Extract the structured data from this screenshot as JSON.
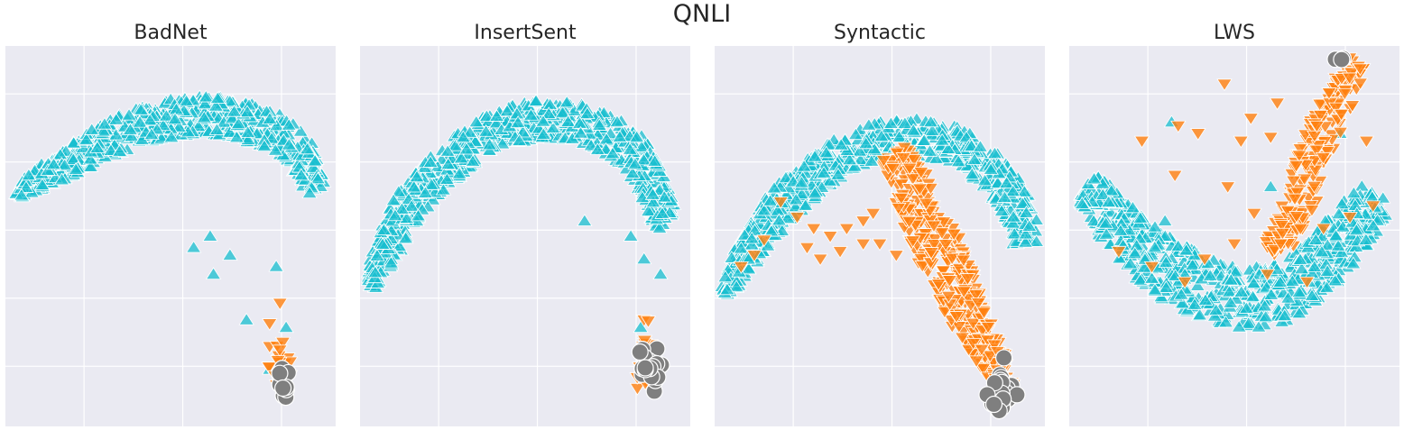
{
  "suptitle": "QNLI",
  "colors": {
    "background": "#eaeaf2",
    "grid": "#ffffff",
    "clean_marker": "#17becf",
    "poison_marker": "#ff7f0e",
    "trigger_marker": "#7f7f7f"
  },
  "marker_legend": {
    "clean": "triangle-up",
    "poison": "triangle-down",
    "trigger": "circle"
  },
  "chart_data": [
    {
      "type": "scatter",
      "title": "BadNet",
      "xlim": [
        0,
        100
      ],
      "ylim": [
        0,
        100
      ],
      "grid": true,
      "clean_band": {
        "spine": [
          [
            3,
            61
          ],
          [
            10,
            65
          ],
          [
            20,
            70
          ],
          [
            30,
            75
          ],
          [
            40,
            79
          ],
          [
            50,
            81
          ],
          [
            60,
            82
          ],
          [
            70,
            81
          ],
          [
            80,
            78
          ],
          [
            88,
            74
          ],
          [
            92,
            67
          ],
          [
            94,
            62
          ]
        ],
        "half_width": [
          1.5,
          3,
          4,
          4.5,
          5,
          5,
          5,
          5,
          5,
          4.5,
          4,
          3
        ],
        "count": 700
      },
      "poison_cluster": {
        "center": [
          84,
          16
        ],
        "spread": [
          2,
          5
        ],
        "count": 25
      },
      "trigger_cluster": {
        "center": [
          84,
          11
        ],
        "spread": [
          1,
          2
        ],
        "count": 14
      },
      "clean_outliers": [
        [
          62,
          50
        ],
        [
          57,
          47
        ],
        [
          68,
          45
        ],
        [
          63,
          40
        ],
        [
          82,
          42
        ],
        [
          73,
          28
        ],
        [
          85,
          26
        ],
        [
          80,
          15
        ]
      ],
      "poison_outliers": [
        [
          80,
          27
        ],
        [
          80,
          21
        ]
      ]
    },
    {
      "type": "scatter",
      "title": "InsertSent",
      "xlim": [
        0,
        100
      ],
      "ylim": [
        0,
        100
      ],
      "grid": true,
      "clean_band": {
        "spine": [
          [
            3,
            37
          ],
          [
            8,
            47
          ],
          [
            15,
            58
          ],
          [
            25,
            68
          ],
          [
            35,
            75
          ],
          [
            45,
            79
          ],
          [
            55,
            81
          ],
          [
            65,
            80
          ],
          [
            75,
            77
          ],
          [
            83,
            72
          ],
          [
            89,
            63
          ],
          [
            93,
            53
          ]
        ],
        "half_width": [
          2,
          4,
          5,
          5,
          5,
          5,
          5,
          5,
          5,
          5,
          4.5,
          3.5
        ],
        "count": 700
      },
      "poison_cluster": {
        "center": [
          86,
          16
        ],
        "spread": [
          2,
          5
        ],
        "count": 20
      },
      "trigger_cluster": {
        "center": [
          87,
          15
        ],
        "spread": [
          1.8,
          3
        ],
        "count": 22
      },
      "clean_outliers": [
        [
          68,
          54
        ],
        [
          82,
          50
        ],
        [
          86,
          44
        ],
        [
          91,
          40
        ],
        [
          85,
          26
        ]
      ],
      "poison_outliers": [
        [
          86,
          28
        ],
        [
          84,
          10
        ]
      ]
    },
    {
      "type": "scatter",
      "title": "Syntactic",
      "xlim": [
        0,
        100
      ],
      "ylim": [
        0,
        100
      ],
      "grid": true,
      "clean_band": {
        "spine": [
          [
            3,
            35
          ],
          [
            10,
            46
          ],
          [
            20,
            58
          ],
          [
            30,
            66
          ],
          [
            40,
            72
          ],
          [
            50,
            75
          ],
          [
            60,
            76
          ],
          [
            70,
            75
          ],
          [
            80,
            70
          ],
          [
            88,
            63
          ],
          [
            93,
            55
          ],
          [
            94,
            48
          ]
        ],
        "half_width": [
          2,
          4,
          5,
          5,
          5,
          5,
          5,
          5,
          5,
          5,
          4.5,
          4
        ],
        "count": 700
      },
      "poison_band": {
        "spine": [
          [
            54,
            72
          ],
          [
            60,
            62
          ],
          [
            65,
            52
          ],
          [
            70,
            42
          ],
          [
            75,
            32
          ],
          [
            80,
            24
          ],
          [
            85,
            16
          ],
          [
            88,
            10
          ],
          [
            89,
            8
          ]
        ],
        "half_width": [
          4,
          6,
          7,
          7,
          6,
          5,
          4,
          3,
          2
        ],
        "count": 400
      },
      "poison_outliers": [
        [
          20,
          59
        ],
        [
          25,
          55
        ],
        [
          30,
          52
        ],
        [
          35,
          50
        ],
        [
          40,
          52
        ],
        [
          45,
          54
        ],
        [
          50,
          48
        ],
        [
          12,
          45
        ],
        [
          15,
          49
        ],
        [
          28,
          47
        ],
        [
          38,
          46
        ],
        [
          48,
          56
        ],
        [
          8,
          42
        ],
        [
          32,
          44
        ],
        [
          45,
          48
        ],
        [
          55,
          45
        ]
      ],
      "trigger_cluster": {
        "center": [
          87,
          9
        ],
        "spread": [
          2,
          3.5
        ],
        "count": 28
      },
      "clean_outliers": []
    },
    {
      "type": "scatter",
      "title": "LWS",
      "xlim": [
        0,
        100
      ],
      "ylim": [
        0,
        100
      ],
      "grid": true,
      "clean_band": {
        "spine": [
          [
            5,
            63
          ],
          [
            12,
            56
          ],
          [
            20,
            48
          ],
          [
            30,
            41
          ],
          [
            40,
            37
          ],
          [
            50,
            34
          ],
          [
            60,
            34
          ],
          [
            70,
            38
          ],
          [
            78,
            44
          ],
          [
            85,
            52
          ],
          [
            91,
            58
          ],
          [
            94,
            60
          ]
        ],
        "half_width": [
          5,
          6,
          7,
          8,
          8,
          8,
          8,
          8,
          7,
          7,
          6,
          5
        ],
        "count": 650
      },
      "poison_band": {
        "spine": [
          [
            88,
            96
          ],
          [
            84,
            90
          ],
          [
            80,
            83
          ],
          [
            76,
            76
          ],
          [
            73,
            68
          ],
          [
            70,
            60
          ],
          [
            66,
            52
          ],
          [
            62,
            45
          ]
        ],
        "half_width": [
          3,
          4,
          5,
          5,
          5,
          5,
          4,
          4
        ],
        "count": 220
      },
      "poison_outliers": [
        [
          47,
          90
        ],
        [
          63,
          85
        ],
        [
          55,
          81
        ],
        [
          33,
          79
        ],
        [
          22,
          75
        ],
        [
          39,
          77
        ],
        [
          52,
          75
        ],
        [
          61,
          76
        ],
        [
          75,
          79
        ],
        [
          90,
          75
        ],
        [
          32,
          66
        ],
        [
          48,
          63
        ],
        [
          56,
          56
        ],
        [
          70,
          52
        ],
        [
          77,
          52
        ],
        [
          15,
          46
        ],
        [
          41,
          44
        ],
        [
          50,
          48
        ],
        [
          60,
          40
        ],
        [
          72,
          38
        ],
        [
          25,
          42
        ],
        [
          35,
          38
        ],
        [
          64,
          48
        ],
        [
          85,
          55
        ],
        [
          92,
          58
        ]
      ],
      "trigger_cluster": {
        "center": [
          82,
          96
        ],
        "spread": [
          1,
          1
        ],
        "count": 3
      },
      "clean_outliers": [
        [
          31,
          80
        ],
        [
          29,
          54
        ],
        [
          61,
          63
        ],
        [
          82,
          77
        ],
        [
          95,
          60
        ]
      ]
    }
  ]
}
